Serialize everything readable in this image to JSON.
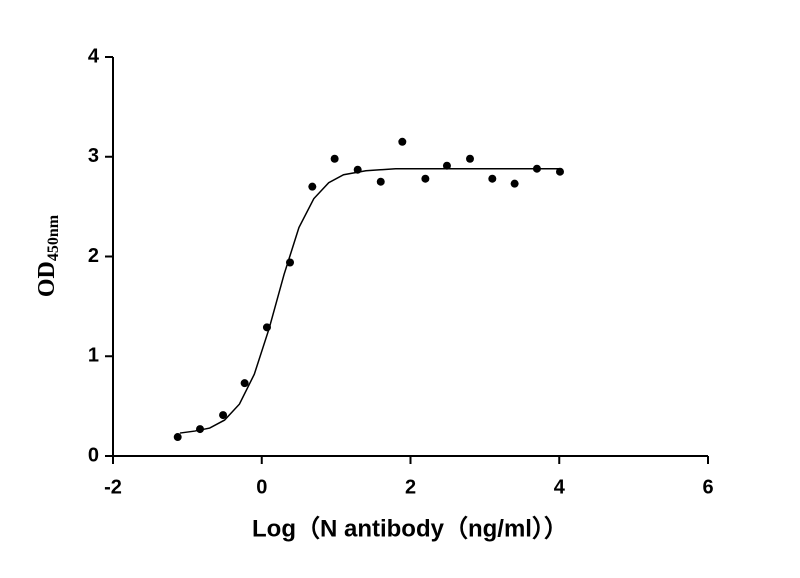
{
  "chart_data": {
    "type": "scatter",
    "x_label": "Log（N antibody（ng/ml））",
    "y_label": "OD",
    "y_label_sub": "450nm",
    "series": [
      {
        "style": "points",
        "color": "#000000",
        "x": [
          -1.13,
          -0.83,
          -0.52,
          -0.23,
          0.07,
          0.38,
          0.68,
          0.98,
          1.29,
          1.6,
          1.89,
          2.2,
          2.49,
          2.8,
          3.1,
          3.4,
          3.7,
          4.01
        ],
        "values": [
          0.19,
          0.27,
          0.41,
          0.73,
          1.29,
          1.94,
          2.7,
          2.98,
          2.87,
          2.75,
          3.15,
          2.78,
          2.91,
          2.98,
          2.78,
          2.73,
          2.88,
          2.85
        ]
      },
      {
        "style": "line",
        "color": "#000000",
        "x": [
          -1.1,
          -0.9,
          -0.7,
          -0.5,
          -0.3,
          -0.1,
          0.1,
          0.3,
          0.5,
          0.7,
          0.9,
          1.1,
          1.4,
          1.8,
          2.4,
          3.0,
          4.0
        ],
        "values": [
          0.23,
          0.25,
          0.28,
          0.36,
          0.52,
          0.82,
          1.28,
          1.82,
          2.29,
          2.58,
          2.74,
          2.82,
          2.86,
          2.88,
          2.88,
          2.88,
          2.88
        ]
      }
    ],
    "xlim": [
      -2,
      6
    ],
    "xticks": [
      -2,
      0,
      2,
      4,
      6
    ],
    "ylim": [
      0,
      4
    ],
    "yticks": [
      0,
      1,
      2,
      3,
      4
    ]
  }
}
